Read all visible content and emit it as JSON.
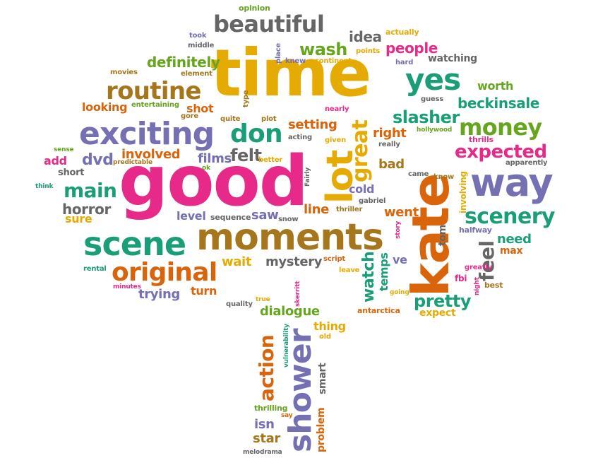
{
  "words": {
    "time": "time",
    "good": "good",
    "kate": "kate",
    "moments": "moments",
    "lot": "lot",
    "exciting": "exciting",
    "way": "way",
    "scene": "scene",
    "original": "original",
    "routine": "routine",
    "yes": "yes",
    "beautiful": "beautiful",
    "shower": "shower",
    "great": "great",
    "money": "money",
    "don": "don",
    "scenery": "scenery",
    "expected": "expected",
    "main": "main",
    "wash": "wash",
    "slasher": "slasher",
    "beckinsale": "beckinsale",
    "definitely": "definitely",
    "people": "people",
    "pretty": "pretty",
    "action": "action",
    "feel": "feel",
    "watch": "watch",
    "dialogue": "dialogue",
    "mystery": "mystery",
    "horror": "horror",
    "dvd": "dvd",
    "involved": "involved",
    "films": "films",
    "felt": "felt",
    "setting": "setting",
    "idea": "idea",
    "worth": "worth",
    "looking": "looking",
    "shot": "shot",
    "trying": "trying",
    "turn": "turn",
    "line": "line",
    "level": "level",
    "saw": "saw",
    "went": "went",
    "cold": "cold",
    "bad": "bad",
    "right": "right",
    "add": "add",
    "sure": "sure",
    "need": "need",
    "wait": "wait",
    "star": "star",
    "isn": "isn",
    "thing": "thing",
    "expect": "expect",
    "temps": "temps",
    "ve": "ve",
    "tom": "tom",
    "max": "max",
    "involving": "involving",
    "smart": "smart",
    "problem": "problem",
    "short": "short",
    "sequence": "sequence",
    "entertaining": "entertaining",
    "thrills": "thrills",
    "watching": "watching",
    "actually": "actually",
    "opinion": "opinion",
    "took": "took",
    "middle": "middle",
    "movies": "movies",
    "element": "element",
    "gore": "gore",
    "quite": "quite",
    "plot": "plot",
    "type": "type",
    "place": "place",
    "knew": "knew",
    "continent": "continent",
    "points": "points",
    "hard": "hard",
    "nearly": "nearly",
    "acting": "acting",
    "given": "given",
    "really": "really",
    "hollywood": "hollywood",
    "guess": "guess",
    "apparently": "apparently",
    "best": "best",
    "greatly": "greatly",
    "night": "night",
    "fbi": "fbi",
    "halfway": "halfway",
    "know": "know",
    "came": "came",
    "gabriel": "gabriel",
    "thriller": "thriller",
    "story": "story",
    "leave": "leave",
    "script": "script",
    "snow": "snow",
    "better": "better",
    "ok": "ok",
    "fairly": "Fairly",
    "predictable": "predictable",
    "sense": "sense",
    "think": "think",
    "rental": "rental",
    "minutes": "minutes",
    "quality": "quality",
    "true": "true",
    "skerritt": "skerritt",
    "antarctica": "antarctica",
    "going": "going",
    "old": "old",
    "vulnerability": "vulnerability",
    "thrilling": "thrilling",
    "say": "say",
    "melodrama": "melodrama"
  },
  "colors": {
    "teal": "#1a9e77",
    "orange": "#d9640a",
    "purple": "#7570b3",
    "pink": "#e7298a",
    "green": "#66a61e",
    "gold": "#e6ab02",
    "brown": "#a6761d",
    "gray": "#666666"
  }
}
